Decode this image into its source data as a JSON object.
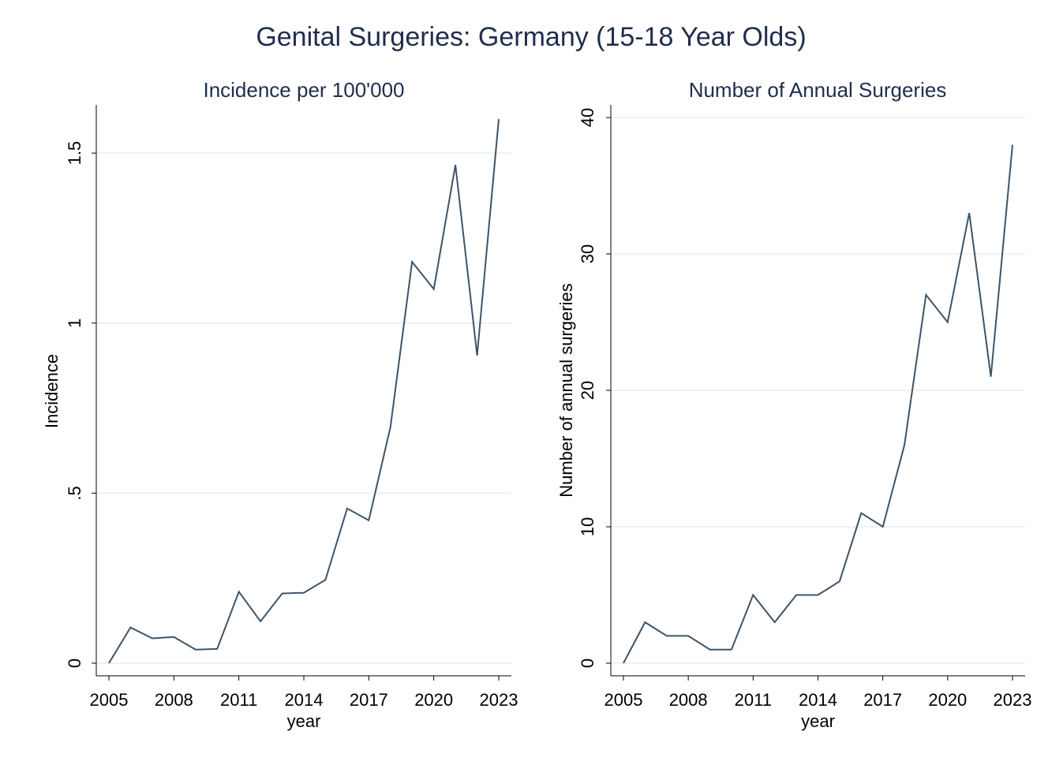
{
  "figure_title": "Genital Surgeries: Germany (15-18 Year Olds)",
  "series_color": "#3e5468",
  "chart_data": [
    {
      "type": "line",
      "title": "Incidence per 100'000",
      "xlabel": "year",
      "ylabel": "Incidence",
      "xlim": [
        2005,
        2023
      ],
      "ylim": [
        0,
        1.6
      ],
      "xticks": [
        2005,
        2008,
        2011,
        2014,
        2017,
        2020,
        2023
      ],
      "yticks": [
        0,
        0.5,
        1,
        1.5
      ],
      "ytick_labels": [
        "0",
        ".5",
        "1",
        "1.5"
      ],
      "grid": true,
      "x": [
        2005,
        2006,
        2007,
        2008,
        2009,
        2010,
        2011,
        2012,
        2013,
        2014,
        2015,
        2016,
        2017,
        2018,
        2019,
        2020,
        2021,
        2022,
        2023
      ],
      "y": [
        0.0,
        0.105,
        0.073,
        0.077,
        0.04,
        0.042,
        0.21,
        0.123,
        0.205,
        0.207,
        0.245,
        0.455,
        0.42,
        0.695,
        1.18,
        1.1,
        1.465,
        0.905,
        1.6
      ]
    },
    {
      "type": "line",
      "title": "Number of Annual Surgeries",
      "xlabel": "year",
      "ylabel": "Number of annual surgeries",
      "xlim": [
        2005,
        2023
      ],
      "ylim": [
        0,
        40
      ],
      "xticks": [
        2005,
        2008,
        2011,
        2014,
        2017,
        2020,
        2023
      ],
      "yticks": [
        0,
        10,
        20,
        30,
        40
      ],
      "ytick_labels": [
        "0",
        "10",
        "20",
        "30",
        "40"
      ],
      "grid": true,
      "x": [
        2005,
        2006,
        2007,
        2008,
        2009,
        2010,
        2011,
        2012,
        2013,
        2014,
        2015,
        2016,
        2017,
        2018,
        2019,
        2020,
        2021,
        2022,
        2023
      ],
      "y": [
        0,
        3,
        2,
        2,
        1,
        1,
        5,
        3,
        5,
        5,
        6,
        11,
        10,
        16,
        27,
        25,
        33,
        21,
        38
      ]
    }
  ]
}
